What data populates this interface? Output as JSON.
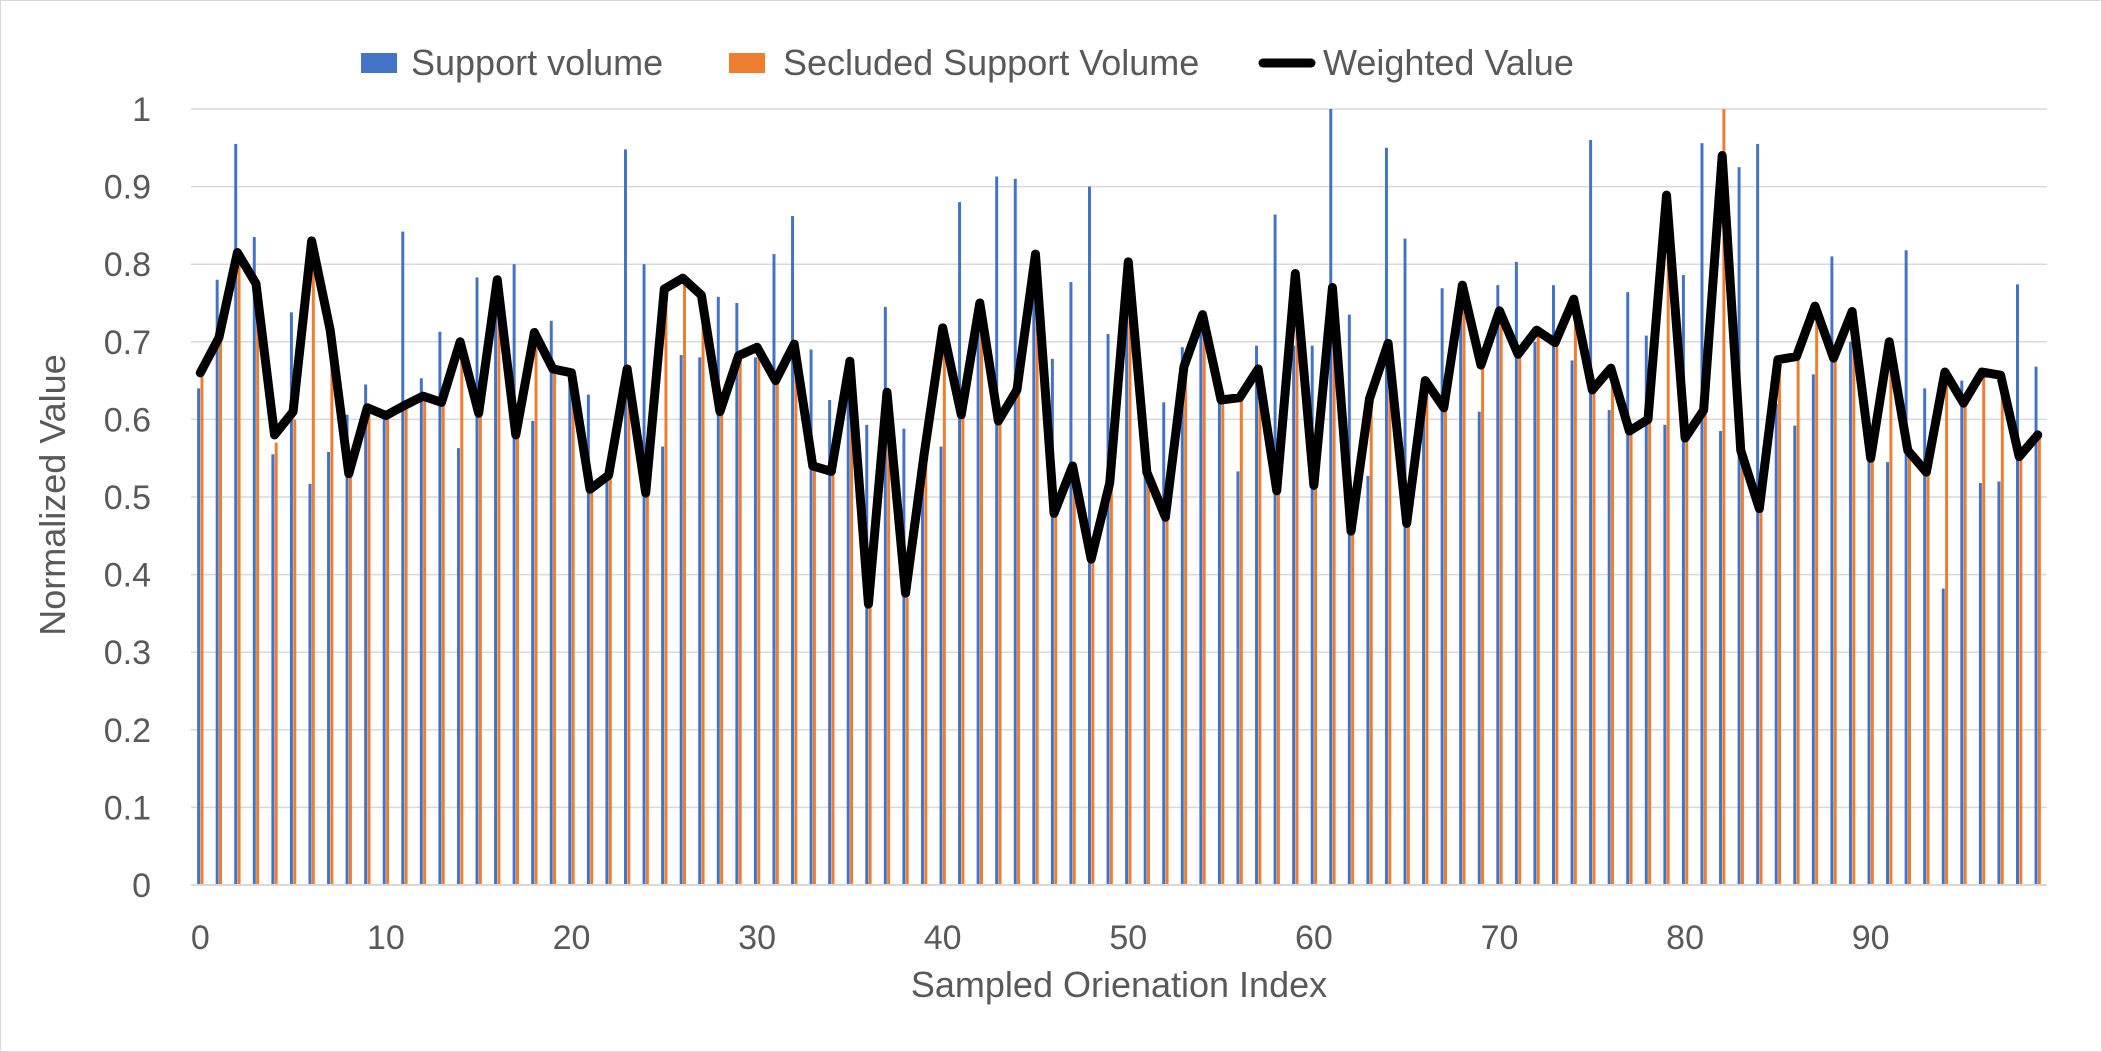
{
  "chart_data": {
    "type": "bar",
    "title": "",
    "xlabel": "Sampled Orienation Index",
    "ylabel": "Normalized Value",
    "ylim": [
      0,
      1
    ],
    "yticks": [
      "0",
      "0.1",
      "0.2",
      "0.3",
      "0.4",
      "0.5",
      "0.6",
      "0.7",
      "0.8",
      "0.9",
      "1"
    ],
    "xticks": [
      "0",
      "10",
      "20",
      "30",
      "40",
      "50",
      "60",
      "70",
      "80",
      "90"
    ],
    "x_range": [
      0,
      99
    ],
    "grid": "horizontal",
    "legend": "top",
    "series": [
      {
        "name": "Support volume",
        "type": "bar",
        "color": "#4472C4",
        "values": [
          0.64,
          0.78,
          0.955,
          0.835,
          0.555,
          0.738,
          0.517,
          0.558,
          0.606,
          0.645,
          0.6,
          0.842,
          0.653,
          0.713,
          0.563,
          0.783,
          0.775,
          0.8,
          0.598,
          0.727,
          0.66,
          0.632,
          0.532,
          0.948,
          0.8,
          0.565,
          0.683,
          0.68,
          0.758,
          0.75,
          0.68,
          0.813,
          0.862,
          0.69,
          0.625,
          0.63,
          0.593,
          0.745,
          0.588,
          0.55,
          0.565,
          0.88,
          0.732,
          0.913,
          0.91,
          0.765,
          0.678,
          0.777,
          0.9,
          0.71,
          0.79,
          0.54,
          0.622,
          0.693,
          0.715,
          0.638,
          0.533,
          0.695,
          0.864,
          0.695,
          0.695,
          1.0,
          0.735,
          0.527,
          0.95,
          0.833,
          0.62,
          0.769,
          0.77,
          0.61,
          0.773,
          0.803,
          0.7,
          0.773,
          0.676,
          0.96,
          0.612,
          0.764,
          0.708,
          0.593,
          0.786,
          0.956,
          0.585,
          0.925,
          0.955,
          0.62,
          0.592,
          0.658,
          0.81,
          0.7,
          0.551,
          0.545,
          0.818,
          0.64,
          0.382,
          0.65,
          0.518,
          0.52,
          0.774,
          0.668
        ]
      },
      {
        "name": "Secluded Support Volume",
        "type": "bar",
        "color": "#ED7D31",
        "values": [
          0.655,
          0.7,
          0.8,
          0.77,
          0.57,
          0.6,
          0.82,
          0.7,
          0.53,
          0.61,
          0.61,
          0.62,
          0.63,
          0.62,
          0.7,
          0.61,
          0.78,
          0.58,
          0.71,
          0.66,
          0.66,
          0.51,
          0.53,
          0.66,
          0.51,
          0.765,
          0.78,
          0.76,
          0.61,
          0.68,
          0.69,
          0.65,
          0.7,
          0.54,
          0.53,
          0.67,
          0.36,
          0.63,
          0.37,
          0.55,
          0.72,
          0.605,
          0.75,
          0.6,
          0.64,
          0.81,
          0.48,
          0.54,
          0.42,
          0.52,
          0.8,
          0.53,
          0.48,
          0.67,
          0.735,
          0.625,
          0.63,
          0.665,
          0.51,
          0.79,
          0.515,
          0.77,
          0.46,
          0.625,
          0.7,
          0.465,
          0.65,
          0.615,
          0.77,
          0.67,
          0.74,
          0.685,
          0.715,
          0.7,
          0.75,
          0.64,
          0.665,
          0.585,
          0.6,
          0.89,
          0.575,
          0.61,
          1.0,
          0.56,
          0.485,
          0.675,
          0.68,
          0.745,
          0.68,
          0.74,
          0.55,
          0.7,
          0.56,
          0.53,
          0.66,
          0.62,
          0.66,
          0.655,
          0.55,
          0.58
        ]
      },
      {
        "name": "Weighted Value",
        "type": "line",
        "color": "#000000",
        "values": [
          0.66,
          0.705,
          0.815,
          0.775,
          0.58,
          0.61,
          0.83,
          0.715,
          0.53,
          0.615,
          0.605,
          0.618,
          0.63,
          0.622,
          0.7,
          0.608,
          0.78,
          0.58,
          0.712,
          0.665,
          0.66,
          0.51,
          0.528,
          0.665,
          0.505,
          0.768,
          0.782,
          0.76,
          0.61,
          0.682,
          0.693,
          0.65,
          0.697,
          0.54,
          0.533,
          0.675,
          0.362,
          0.635,
          0.376,
          0.555,
          0.718,
          0.606,
          0.75,
          0.598,
          0.638,
          0.813,
          0.479,
          0.54,
          0.42,
          0.518,
          0.803,
          0.532,
          0.474,
          0.668,
          0.735,
          0.625,
          0.628,
          0.665,
          0.508,
          0.788,
          0.515,
          0.77,
          0.456,
          0.627,
          0.698,
          0.466,
          0.65,
          0.615,
          0.773,
          0.67,
          0.74,
          0.684,
          0.715,
          0.699,
          0.755,
          0.638,
          0.666,
          0.585,
          0.6,
          0.889,
          0.576,
          0.612,
          0.94,
          0.56,
          0.485,
          0.677,
          0.681,
          0.746,
          0.679,
          0.739,
          0.55,
          0.7,
          0.56,
          0.532,
          0.661,
          0.621,
          0.661,
          0.657,
          0.552,
          0.58
        ]
      }
    ]
  }
}
